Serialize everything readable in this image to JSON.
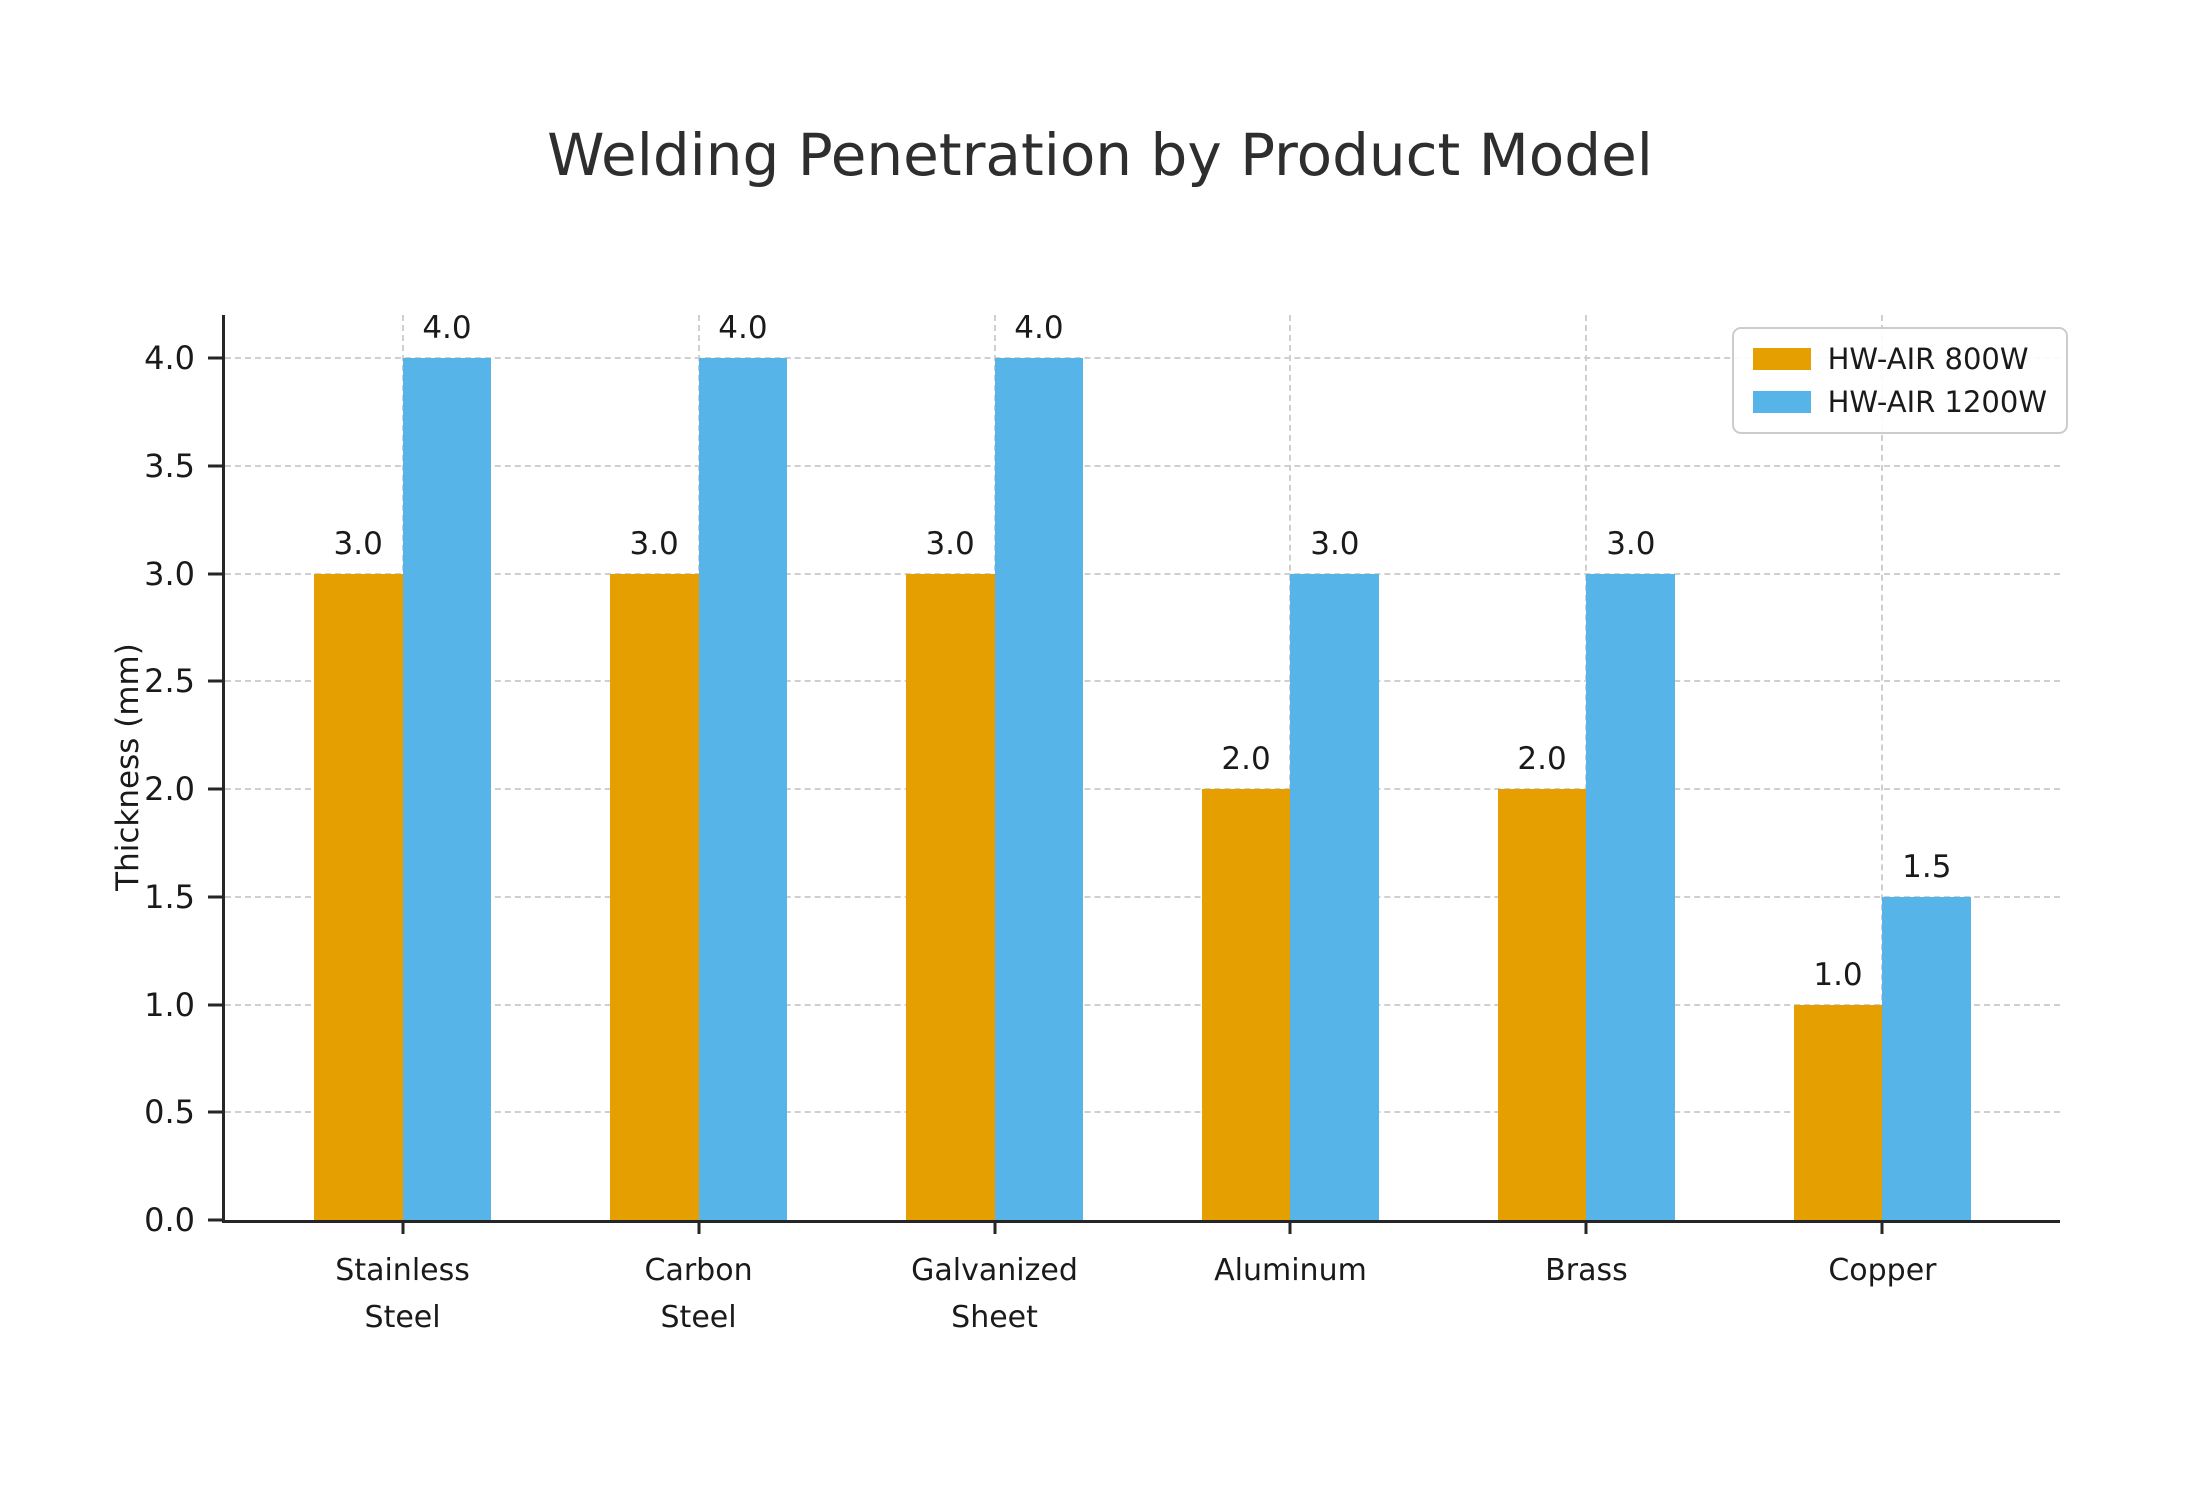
{
  "chart_data": {
    "type": "bar",
    "title": "Welding Penetration by Product Model",
    "xlabel": "",
    "ylabel": "Thickness (mm)",
    "categories": [
      "Stainless\nSteel",
      "Carbon\nSteel",
      "Galvanized\nSheet",
      "Aluminum",
      "Brass",
      "Copper"
    ],
    "series": [
      {
        "name": "HW-AIR 800W",
        "color": "#E69F00",
        "values": [
          3.0,
          3.0,
          3.0,
          2.0,
          2.0,
          1.0
        ]
      },
      {
        "name": "HW-AIR 1200W",
        "color": "#56B4E9",
        "values": [
          4.0,
          4.0,
          4.0,
          3.0,
          3.0,
          1.5
        ]
      }
    ],
    "ylim": [
      0,
      4.2
    ],
    "yticks": [
      0.0,
      0.5,
      1.0,
      1.5,
      2.0,
      2.5,
      3.0,
      3.5,
      4.0
    ],
    "grid": true,
    "grid_style": "dashed",
    "legend_position": "upper right",
    "bar_value_labels": true,
    "bar_width_units": 0.3,
    "axis_color": "#262626",
    "grid_color": "#cfcfcf"
  }
}
